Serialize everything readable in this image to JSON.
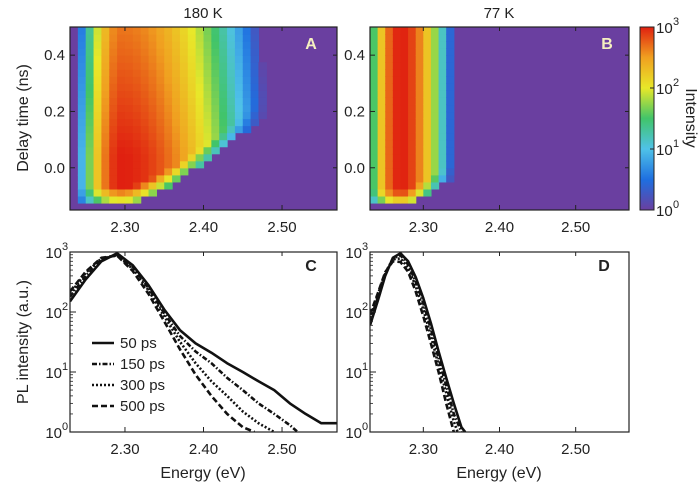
{
  "chart_data": [
    {
      "id": "A",
      "type": "heatmap",
      "title": "180 K",
      "panel_label": "A",
      "xlabel": "",
      "ylabel": "Delay time (ns)",
      "xlim": [
        2.23,
        2.57
      ],
      "ylim": [
        -0.15,
        0.5
      ],
      "xticks": [
        2.3,
        2.4,
        2.5
      ],
      "xtick_labels": [
        "2.30",
        "2.40",
        "2.50"
      ],
      "yticks": [
        0.0,
        0.2,
        0.4
      ],
      "ytick_labels": [
        "0.0",
        "0.2",
        "0.4"
      ],
      "peak_energy_eV": 2.295,
      "onset_delay_ns": -0.12,
      "emission_cutoff_eV": 2.52,
      "colorbar_min_log10": 0,
      "colorbar_max_log10": 3
    },
    {
      "id": "B",
      "type": "heatmap",
      "title": "77 K",
      "panel_label": "B",
      "xlim": [
        2.23,
        2.57
      ],
      "ylim": [
        -0.15,
        0.5
      ],
      "xticks": [
        2.3,
        2.4,
        2.5
      ],
      "xtick_labels": [
        "2.30",
        "2.40",
        "2.50"
      ],
      "yticks": [
        0.0,
        0.2,
        0.4
      ],
      "ytick_labels": [
        "0.0",
        "0.2",
        "0.4"
      ],
      "peak_energy_eV": 2.27,
      "emission_cutoff_eV": 2.335
    },
    {
      "id": "C",
      "type": "line",
      "panel_label": "C",
      "xlabel": "Energy (eV)",
      "ylabel": "PL intensity (a.u.)",
      "yscale": "log",
      "xlim": [
        2.23,
        2.57
      ],
      "ylim": [
        1,
        1000
      ],
      "xticks": [
        2.3,
        2.4,
        2.5
      ],
      "xtick_labels": [
        "2.30",
        "2.40",
        "2.50"
      ],
      "yticks_exp": [
        0,
        1,
        2,
        3
      ],
      "legend": "bottom-left",
      "series": [
        {
          "name": "50 ps",
          "style": "solid",
          "x": [
            2.23,
            2.25,
            2.27,
            2.29,
            2.31,
            2.33,
            2.35,
            2.37,
            2.39,
            2.41,
            2.43,
            2.45,
            2.47,
            2.49,
            2.51,
            2.53,
            2.55,
            2.57
          ],
          "y": [
            150,
            350,
            700,
            950,
            600,
            280,
            110,
            50,
            30,
            21,
            14,
            10,
            7,
            5,
            3,
            2,
            1.4,
            1.4
          ]
        },
        {
          "name": "150 ps",
          "style": "dashdot",
          "x": [
            2.23,
            2.25,
            2.27,
            2.29,
            2.31,
            2.33,
            2.35,
            2.37,
            2.39,
            2.41,
            2.43,
            2.45,
            2.47,
            2.49,
            2.51,
            2.52
          ],
          "y": [
            180,
            400,
            750,
            900,
            560,
            250,
            95,
            40,
            22,
            14,
            8,
            5,
            3,
            2,
            1.3,
            1
          ]
        },
        {
          "name": "300 ps",
          "style": "dotted",
          "x": [
            2.23,
            2.25,
            2.27,
            2.29,
            2.31,
            2.33,
            2.35,
            2.37,
            2.39,
            2.41,
            2.43,
            2.45,
            2.47,
            2.49
          ],
          "y": [
            200,
            450,
            780,
            880,
            520,
            230,
            85,
            32,
            14,
            7,
            4,
            2.2,
            1.4,
            1
          ]
        },
        {
          "name": "500 ps",
          "style": "dashed",
          "x": [
            2.23,
            2.25,
            2.27,
            2.29,
            2.31,
            2.33,
            2.35,
            2.37,
            2.39,
            2.41,
            2.43,
            2.45,
            2.465
          ],
          "y": [
            220,
            470,
            800,
            870,
            480,
            200,
            70,
            24,
            9,
            4,
            2,
            1.2,
            1
          ]
        }
      ]
    },
    {
      "id": "D",
      "type": "line",
      "panel_label": "D",
      "xlabel": "Energy (eV)",
      "yscale": "log",
      "xlim": [
        2.23,
        2.57
      ],
      "ylim": [
        1,
        1000
      ],
      "xticks": [
        2.3,
        2.4,
        2.5
      ],
      "xtick_labels": [
        "2.30",
        "2.40",
        "2.50"
      ],
      "yticks_exp": [
        0,
        1,
        2,
        3
      ],
      "series": [
        {
          "name": "50 ps",
          "style": "solid",
          "x": [
            2.23,
            2.24,
            2.25,
            2.26,
            2.27,
            2.28,
            2.29,
            2.3,
            2.31,
            2.32,
            2.33,
            2.34,
            2.35,
            2.355
          ],
          "y": [
            60,
            150,
            400,
            800,
            950,
            700,
            380,
            170,
            65,
            22,
            8,
            3,
            1.2,
            1
          ]
        },
        {
          "name": "150 ps",
          "style": "dashdot",
          "x": [
            2.23,
            2.24,
            2.25,
            2.26,
            2.27,
            2.28,
            2.29,
            2.3,
            2.31,
            2.32,
            2.33,
            2.34,
            2.35
          ],
          "y": [
            70,
            170,
            430,
            780,
            880,
            620,
            320,
            140,
            52,
            17,
            6,
            2,
            1
          ]
        },
        {
          "name": "300 ps",
          "style": "dotted",
          "x": [
            2.23,
            2.24,
            2.25,
            2.26,
            2.27,
            2.28,
            2.29,
            2.3,
            2.31,
            2.32,
            2.33,
            2.34,
            2.345
          ],
          "y": [
            80,
            190,
            450,
            760,
            780,
            550,
            270,
            110,
            40,
            13,
            4.5,
            1.5,
            1
          ]
        },
        {
          "name": "500 ps",
          "style": "dashed",
          "x": [
            2.23,
            2.24,
            2.25,
            2.26,
            2.27,
            2.28,
            2.29,
            2.3,
            2.31,
            2.32,
            2.33,
            2.34
          ],
          "y": [
            90,
            200,
            460,
            700,
            680,
            470,
            220,
            85,
            30,
            10,
            3,
            1
          ]
        }
      ]
    }
  ],
  "colorbar": {
    "label": "Intensity",
    "tick_exps": [
      0,
      1,
      2,
      3
    ],
    "colors": [
      "#6a3fa0",
      "#1e6fe0",
      "#4fc2e8",
      "#41c46a",
      "#e8e829",
      "#f0a020",
      "#e02010"
    ]
  },
  "heatmap_bg": "#6a3fa0"
}
